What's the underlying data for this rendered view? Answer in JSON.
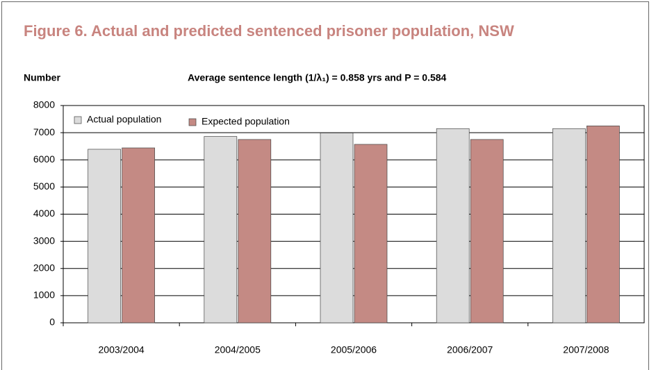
{
  "chart_data": {
    "type": "bar",
    "title": "Figure 6. Actual and predicted sentenced prisoner population, NSW",
    "y_label": "Number",
    "subtitle": "Average sentence length (1/λ₁) =  0.858 yrs and P = 0.584",
    "categories": [
      "2003/2004",
      "2004/2005",
      "2005/2006",
      "2006/2007",
      "2007/2008"
    ],
    "series": [
      {
        "name": "Actual population",
        "color": "#dcdcdc",
        "values": [
          6390,
          6860,
          6990,
          7150,
          7150
        ]
      },
      {
        "name": "Expected population",
        "color": "#c48a84",
        "values": [
          6440,
          6750,
          6570,
          6750,
          7250
        ]
      }
    ],
    "ylim": [
      0,
      8000
    ],
    "yticks": [
      0,
      1000,
      2000,
      3000,
      4000,
      5000,
      6000,
      7000,
      8000
    ],
    "grid": true
  }
}
